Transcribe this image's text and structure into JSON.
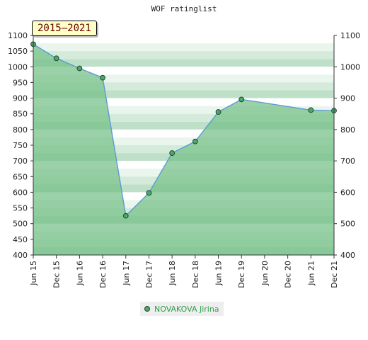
{
  "chart_data": {
    "type": "area",
    "title": "WOF ratinglist",
    "period_label": "2015–2021",
    "x_tick_labels": [
      "Jun 15",
      "Dec 15",
      "Jun 16",
      "Dec 16",
      "Jun 17",
      "Dec 17",
      "Jun 18",
      "Dec 18",
      "Jun 19",
      "Dec 19",
      "Jun 20",
      "Dec 20",
      "Jun 21",
      "Dec 21"
    ],
    "y_left_ticks": [
      400,
      450,
      500,
      550,
      600,
      650,
      700,
      750,
      800,
      850,
      900,
      950,
      1000,
      1050,
      1100
    ],
    "y_right_ticks": [
      400,
      500,
      600,
      700,
      800,
      900,
      1000,
      1100
    ],
    "ylim": [
      400,
      1100
    ],
    "series": [
      {
        "name": "NOVAKOVA Jirina",
        "points": [
          {
            "x": "Jun 15",
            "y": 1072
          },
          {
            "x": "Dec 15",
            "y": 1027
          },
          {
            "x": "Jun 16",
            "y": 995
          },
          {
            "x": "Dec 16",
            "y": 965
          },
          {
            "x": "Jun 17",
            "y": 525
          },
          {
            "x": "Dec 17",
            "y": 598
          },
          {
            "x": "Jun 18",
            "y": 725
          },
          {
            "x": "Dec 18",
            "y": 762
          },
          {
            "x": "Jun 19",
            "y": 856
          },
          {
            "x": "Dec 19",
            "y": 896
          },
          {
            "x": "Jun 21",
            "y": 862
          },
          {
            "x": "Dec 21",
            "y": 860
          }
        ]
      }
    ],
    "colors": {
      "line": "#5b9bd5",
      "marker_fill": "#4ea66a",
      "marker_stroke": "#1f4a2a",
      "area_fill": "#74bf86",
      "legend_text": "#2e9e4e"
    },
    "legend_position": "bottom-center",
    "grid": true
  }
}
